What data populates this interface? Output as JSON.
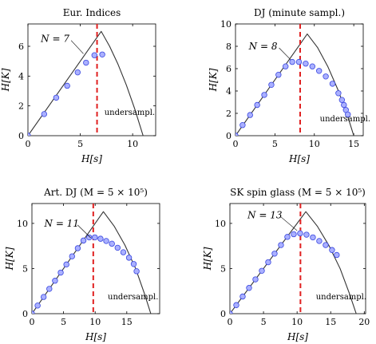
{
  "colors": {
    "curve": "#333333",
    "marker_fill": "#aab0ff",
    "marker_stroke": "#3a48e0",
    "threshold": "#e02020",
    "axis": "#000000"
  },
  "chart_data": [
    {
      "type": "line",
      "title": "Eur. Indices",
      "xlabel": "H[s]",
      "ylabel": "H[K]",
      "xlim": [
        0,
        12.2
      ],
      "ylim": [
        0,
        7.5
      ],
      "xticks": [
        0,
        5,
        10
      ],
      "yticks": [
        0,
        2,
        4,
        6
      ],
      "threshold_x": 6.6,
      "n_label": "N = 7",
      "n_label_pos": [
        2.6,
        6.5
      ],
      "n_label_target": [
        5.3,
        5.5
      ],
      "under_label": "undersampl.",
      "under_label_pos": [
        7.3,
        1.4
      ],
      "bound": {
        "x": [
          0,
          7.0,
          7.8,
          8.6,
          9.4,
          10.2,
          11.0
        ],
        "y": [
          0,
          7.0,
          6.0,
          4.8,
          3.4,
          1.8,
          0
        ]
      },
      "points": {
        "x": [
          0,
          1.55,
          2.7,
          3.75,
          4.75,
          5.55,
          6.35,
          7.1
        ],
        "y": [
          0,
          1.45,
          2.55,
          3.35,
          4.25,
          4.9,
          5.4,
          5.45
        ]
      }
    },
    {
      "type": "line",
      "title": "DJ (minute sampl.)",
      "xlabel": "H[s]",
      "ylabel": "H[K]",
      "xlim": [
        0,
        16.2
      ],
      "ylim": [
        0,
        10
      ],
      "xticks": [
        0,
        5,
        10,
        15
      ],
      "yticks": [
        0,
        2,
        4,
        6,
        8,
        10
      ],
      "threshold_x": 8.2,
      "n_label": "N = 8",
      "n_label_pos": [
        3.5,
        8.0
      ],
      "n_label_target": [
        7.0,
        6.8
      ],
      "under_label": "undersampl.",
      "under_label_pos": [
        10.7,
        1.3
      ],
      "bound": {
        "x": [
          0,
          9.1,
          10.4,
          11.7,
          13.0,
          14.2,
          15.0
        ],
        "y": [
          0,
          9.1,
          7.9,
          6.2,
          4.1,
          1.8,
          0
        ]
      },
      "points": {
        "x": [
          0,
          0.9,
          1.85,
          2.75,
          3.65,
          4.55,
          5.45,
          6.35,
          7.2,
          8.05,
          8.9,
          9.75,
          10.6,
          11.45,
          12.3,
          13.05,
          13.5,
          13.75,
          14.0,
          14.25
        ],
        "y": [
          0,
          0.95,
          1.85,
          2.75,
          3.65,
          4.55,
          5.45,
          6.2,
          6.6,
          6.6,
          6.45,
          6.2,
          5.8,
          5.3,
          4.65,
          3.8,
          3.2,
          2.75,
          2.3,
          1.9
        ]
      }
    },
    {
      "type": "line",
      "title": "Art. DJ (M = 5 × 10⁵)",
      "xlabel": "H[s]",
      "ylabel": "H[K]",
      "xlim": [
        0,
        20.2
      ],
      "ylim": [
        0,
        12.2
      ],
      "xticks": [
        0,
        5,
        10,
        15
      ],
      "yticks": [
        0,
        5,
        10
      ],
      "threshold_x": 9.7,
      "n_label": "N = 11",
      "n_label_pos": [
        4.7,
        10.0
      ],
      "n_label_target": [
        9.3,
        8.4
      ],
      "under_label": "undersampl.",
      "under_label_pos": [
        12.0,
        1.6
      ],
      "bound": {
        "x": [
          0,
          11.3,
          13.0,
          14.7,
          16.4,
          17.8,
          18.8
        ],
        "y": [
          0,
          11.3,
          9.7,
          7.6,
          5.0,
          2.2,
          0
        ]
      },
      "points": {
        "x": [
          0,
          0.9,
          1.85,
          2.75,
          3.65,
          4.55,
          5.45,
          6.35,
          7.25,
          8.15,
          9.05,
          9.95,
          10.85,
          11.75,
          12.65,
          13.55,
          14.45,
          15.35,
          16.1,
          16.55
        ],
        "y": [
          0,
          0.9,
          1.85,
          2.75,
          3.65,
          4.55,
          5.45,
          6.35,
          7.25,
          8.1,
          8.45,
          8.45,
          8.3,
          8.05,
          7.75,
          7.3,
          6.8,
          6.2,
          5.5,
          4.7
        ]
      }
    },
    {
      "type": "line",
      "title": "SK spin glass (M = 5 × 10⁵)",
      "xlabel": "H[s]",
      "ylabel": "H[K]",
      "xlim": [
        0,
        20.2
      ],
      "ylim": [
        0,
        12.2
      ],
      "xticks": [
        0,
        5,
        10,
        15,
        20
      ],
      "yticks": [
        0,
        5,
        10
      ],
      "threshold_x": 10.5,
      "n_label": "N = 13",
      "n_label_pos": [
        5.2,
        10.9
      ],
      "n_label_target": [
        10.0,
        9.2
      ],
      "under_label": "undersampl.",
      "under_label_pos": [
        12.8,
        1.6
      ],
      "bound": {
        "x": [
          0,
          11.3,
          13.0,
          14.7,
          16.4,
          17.8,
          18.8
        ],
        "y": [
          0,
          11.3,
          9.7,
          7.6,
          5.0,
          2.2,
          0
        ]
      },
      "points": {
        "x": [
          0,
          0.95,
          1.9,
          2.85,
          3.8,
          4.75,
          5.7,
          6.65,
          7.6,
          8.55,
          9.5,
          10.45,
          11.4,
          12.35,
          13.3,
          14.25,
          15.2,
          15.9
        ],
        "y": [
          0,
          0.95,
          1.9,
          2.85,
          3.8,
          4.75,
          5.7,
          6.65,
          7.6,
          8.5,
          8.8,
          8.9,
          8.75,
          8.45,
          8.05,
          7.6,
          7.05,
          6.5
        ]
      }
    }
  ]
}
